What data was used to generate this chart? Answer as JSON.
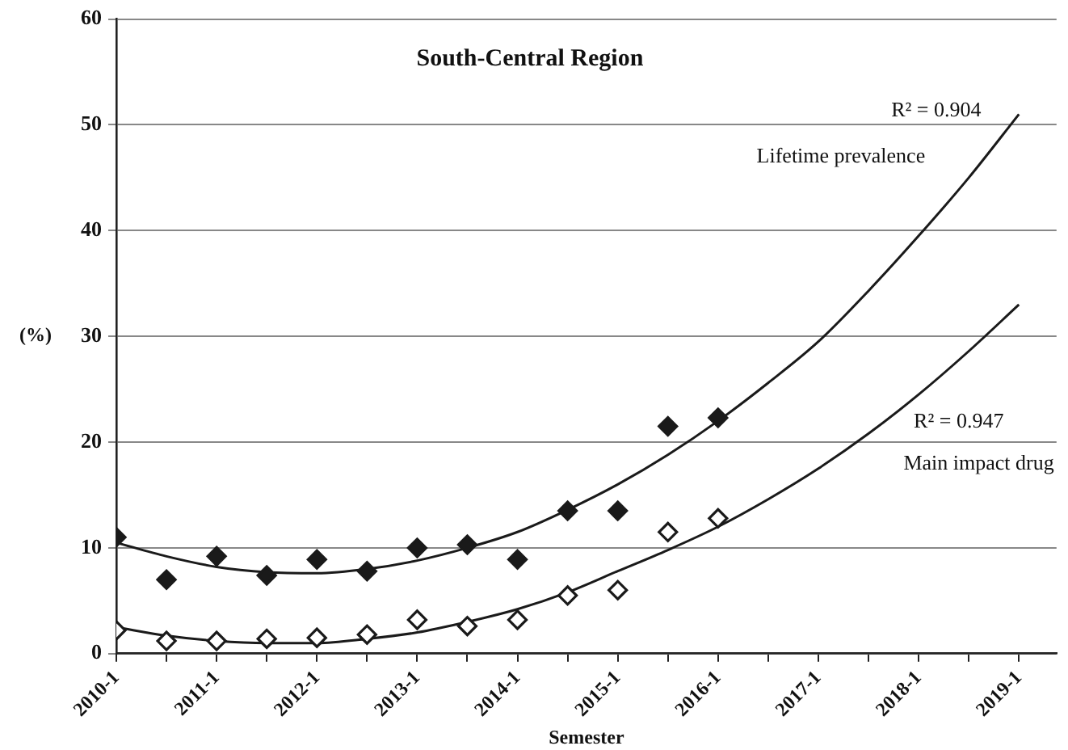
{
  "chart_data": {
    "type": "scatter",
    "title": "South-Central Region",
    "xlabel": "Semester",
    "ylabel": "(%)",
    "categories": [
      "2010-1",
      null,
      "2011-1",
      null,
      "2012-1",
      null,
      "2013-1",
      null,
      "2014-1",
      null,
      "2015-1",
      null,
      "2016-1",
      null,
      "2017-1",
      null,
      "2018-1",
      null,
      "2019-1"
    ],
    "series": [
      {
        "color": "#1a1a1a",
        "marker": "diamond",
        "values": [
          11,
          7,
          9.2,
          7.4,
          8.9,
          7.8,
          10,
          10.3,
          8.9,
          13.5,
          13.5,
          21.5,
          22.3,
          null,
          null,
          null,
          null,
          null,
          null
        ]
      },
      {
        "color": "#ffffff",
        "marker": "diamond",
        "values": [
          2.2,
          1.2,
          1.2,
          1.4,
          1.5,
          1.8,
          3.2,
          2.6,
          3.2,
          5.5,
          6,
          11.5,
          12.8,
          null,
          null,
          null,
          null,
          null,
          null
        ]
      },
      {
        "type": "line",
        "color": "#1a1a1a",
        "marker": "none",
        "values": [
          10.5,
          9.2,
          8.2,
          7.7,
          7.6,
          8,
          8.8,
          10,
          11.5,
          13.6,
          16,
          18.8,
          22,
          25.6,
          29.5,
          34.3,
          39.5,
          45,
          51
        ]
      },
      {
        "type": "line",
        "color": "#1a1a1a",
        "marker": "none",
        "values": [
          2.5,
          1.7,
          1.2,
          1,
          1,
          1.4,
          2,
          3,
          4.2,
          5.8,
          7.8,
          9.8,
          12,
          14.6,
          17.5,
          20.8,
          24.5,
          28.6,
          33
        ]
      }
    ],
    "ylim": [
      0,
      60
    ],
    "yticks": [
      0,
      10,
      20,
      30,
      40,
      50,
      60
    ],
    "grid": "y",
    "legend": false,
    "annotations": [
      "R² = 0.904",
      "Lifetime prevalence",
      "R² = 0.947",
      "Main impact drug"
    ]
  }
}
